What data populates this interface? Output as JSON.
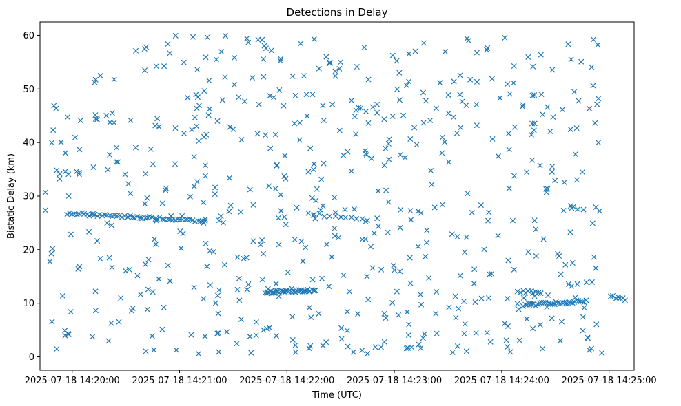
{
  "chart_data": {
    "type": "scatter",
    "title": "Detections in Delay",
    "xlabel": "Time (UTC)",
    "ylabel": "Bistatic Delay (km)",
    "xlim_seconds": [
      -18,
      314
    ],
    "ylim": [
      -2.5,
      62.5
    ],
    "x_reference": "2025-07-18 14:20:00",
    "x_ticks": [
      {
        "seconds": 0,
        "label": "2025-07-18 14:20:00"
      },
      {
        "seconds": 60,
        "label": "2025-07-18 14:21:00"
      },
      {
        "seconds": 120,
        "label": "2025-07-18 14:22:00"
      },
      {
        "seconds": 180,
        "label": "2025-07-18 14:23:00"
      },
      {
        "seconds": 240,
        "label": "2025-07-18 14:24:00"
      },
      {
        "seconds": 300,
        "label": "2025-07-18 14:25:00"
      }
    ],
    "y_ticks": [
      {
        "value": 0,
        "label": "0"
      },
      {
        "value": 10,
        "label": "10"
      },
      {
        "value": 20,
        "label": "20"
      },
      {
        "value": 30,
        "label": "30"
      },
      {
        "value": 40,
        "label": "40"
      },
      {
        "value": 50,
        "label": "50"
      },
      {
        "value": 60,
        "label": "60"
      }
    ],
    "marker": "x",
    "color": "#1f77b4",
    "time_span_seconds": [
      -15,
      296
    ],
    "noise_seed": 12345,
    "noise_count": 620,
    "tracks": [
      {
        "t": [
          -3.0,
          73.0
        ],
        "delay": [
          26.8,
          25.4
        ],
        "n": 55
      },
      {
        "t": [
          132.0,
          165.0
        ],
        "delay": [
          26.8,
          25.4
        ],
        "n": 12
      },
      {
        "t": [
          108.0,
          136.0
        ],
        "delay": [
          12.0,
          12.4
        ],
        "n": 40
      },
      {
        "t": [
          249.0,
          262.0
        ],
        "delay": [
          12.2,
          12.0
        ],
        "n": 10
      },
      {
        "t": [
          252.0,
          287.0
        ],
        "delay": [
          9.6,
          10.4
        ],
        "n": 35
      },
      {
        "t": [
          301.0,
          309.0
        ],
        "delay": [
          11.2,
          10.8
        ],
        "n": 7
      }
    ]
  }
}
